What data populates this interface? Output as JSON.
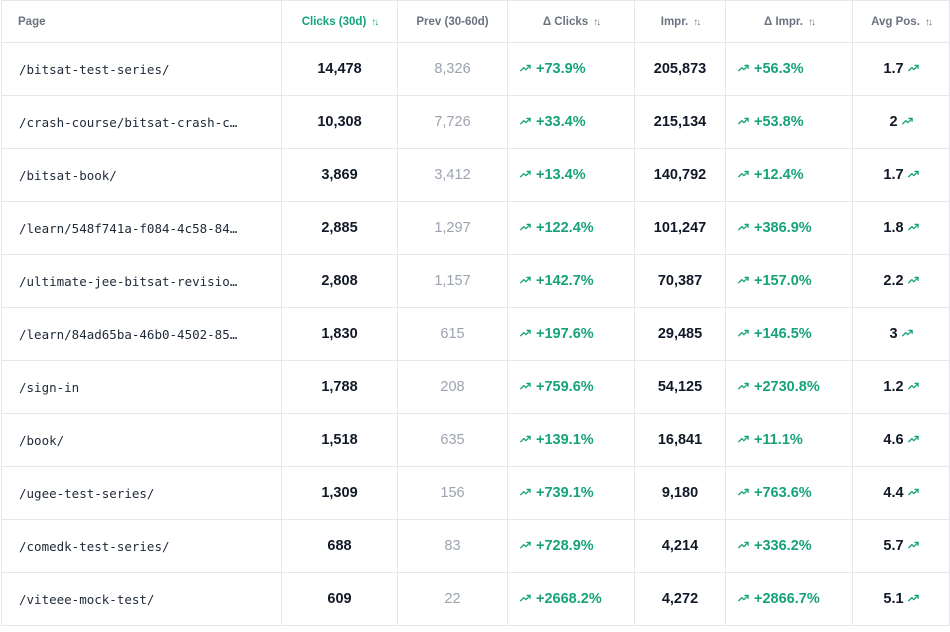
{
  "columns": {
    "page": "Page",
    "clicks": "Clicks (30d)",
    "prev": "Prev (30-60d)",
    "delta_clicks": "Δ Clicks",
    "impr": "Impr.",
    "delta_impr": "Δ Impr.",
    "avg_pos": "Avg Pos."
  },
  "sort_icon": "↑↓",
  "trend_icon": "trending-up-icon",
  "colors": {
    "accent": "#14a37f",
    "positive": "#16a37a"
  },
  "rows": [
    {
      "page": "/bitsat-test-series/",
      "clicks": "14,478",
      "prev": "8,326",
      "delta_clicks": "+73.9%",
      "impr": "205,873",
      "delta_impr": "+56.3%",
      "avg_pos": "1.7"
    },
    {
      "page": "/crash-course/bitsat-crash-c…",
      "clicks": "10,308",
      "prev": "7,726",
      "delta_clicks": "+33.4%",
      "impr": "215,134",
      "delta_impr": "+53.8%",
      "avg_pos": "2"
    },
    {
      "page": "/bitsat-book/",
      "clicks": "3,869",
      "prev": "3,412",
      "delta_clicks": "+13.4%",
      "impr": "140,792",
      "delta_impr": "+12.4%",
      "avg_pos": "1.7"
    },
    {
      "page": "/learn/548f741a-f084-4c58-84…",
      "clicks": "2,885",
      "prev": "1,297",
      "delta_clicks": "+122.4%",
      "impr": "101,247",
      "delta_impr": "+386.9%",
      "avg_pos": "1.8"
    },
    {
      "page": "/ultimate-jee-bitsat-revisio…",
      "clicks": "2,808",
      "prev": "1,157",
      "delta_clicks": "+142.7%",
      "impr": "70,387",
      "delta_impr": "+157.0%",
      "avg_pos": "2.2"
    },
    {
      "page": "/learn/84ad65ba-46b0-4502-85…",
      "clicks": "1,830",
      "prev": "615",
      "delta_clicks": "+197.6%",
      "impr": "29,485",
      "delta_impr": "+146.5%",
      "avg_pos": "3"
    },
    {
      "page": "/sign-in",
      "clicks": "1,788",
      "prev": "208",
      "delta_clicks": "+759.6%",
      "impr": "54,125",
      "delta_impr": "+2730.8%",
      "avg_pos": "1.2"
    },
    {
      "page": "/book/",
      "clicks": "1,518",
      "prev": "635",
      "delta_clicks": "+139.1%",
      "impr": "16,841",
      "delta_impr": "+11.1%",
      "avg_pos": "4.6"
    },
    {
      "page": "/ugee-test-series/",
      "clicks": "1,309",
      "prev": "156",
      "delta_clicks": "+739.1%",
      "impr": "9,180",
      "delta_impr": "+763.6%",
      "avg_pos": "4.4"
    },
    {
      "page": "/comedk-test-series/",
      "clicks": "688",
      "prev": "83",
      "delta_clicks": "+728.9%",
      "impr": "4,214",
      "delta_impr": "+336.2%",
      "avg_pos": "5.7"
    },
    {
      "page": "/viteee-mock-test/",
      "clicks": "609",
      "prev": "22",
      "delta_clicks": "+2668.2%",
      "impr": "4,272",
      "delta_impr": "+2866.7%",
      "avg_pos": "5.1"
    }
  ]
}
